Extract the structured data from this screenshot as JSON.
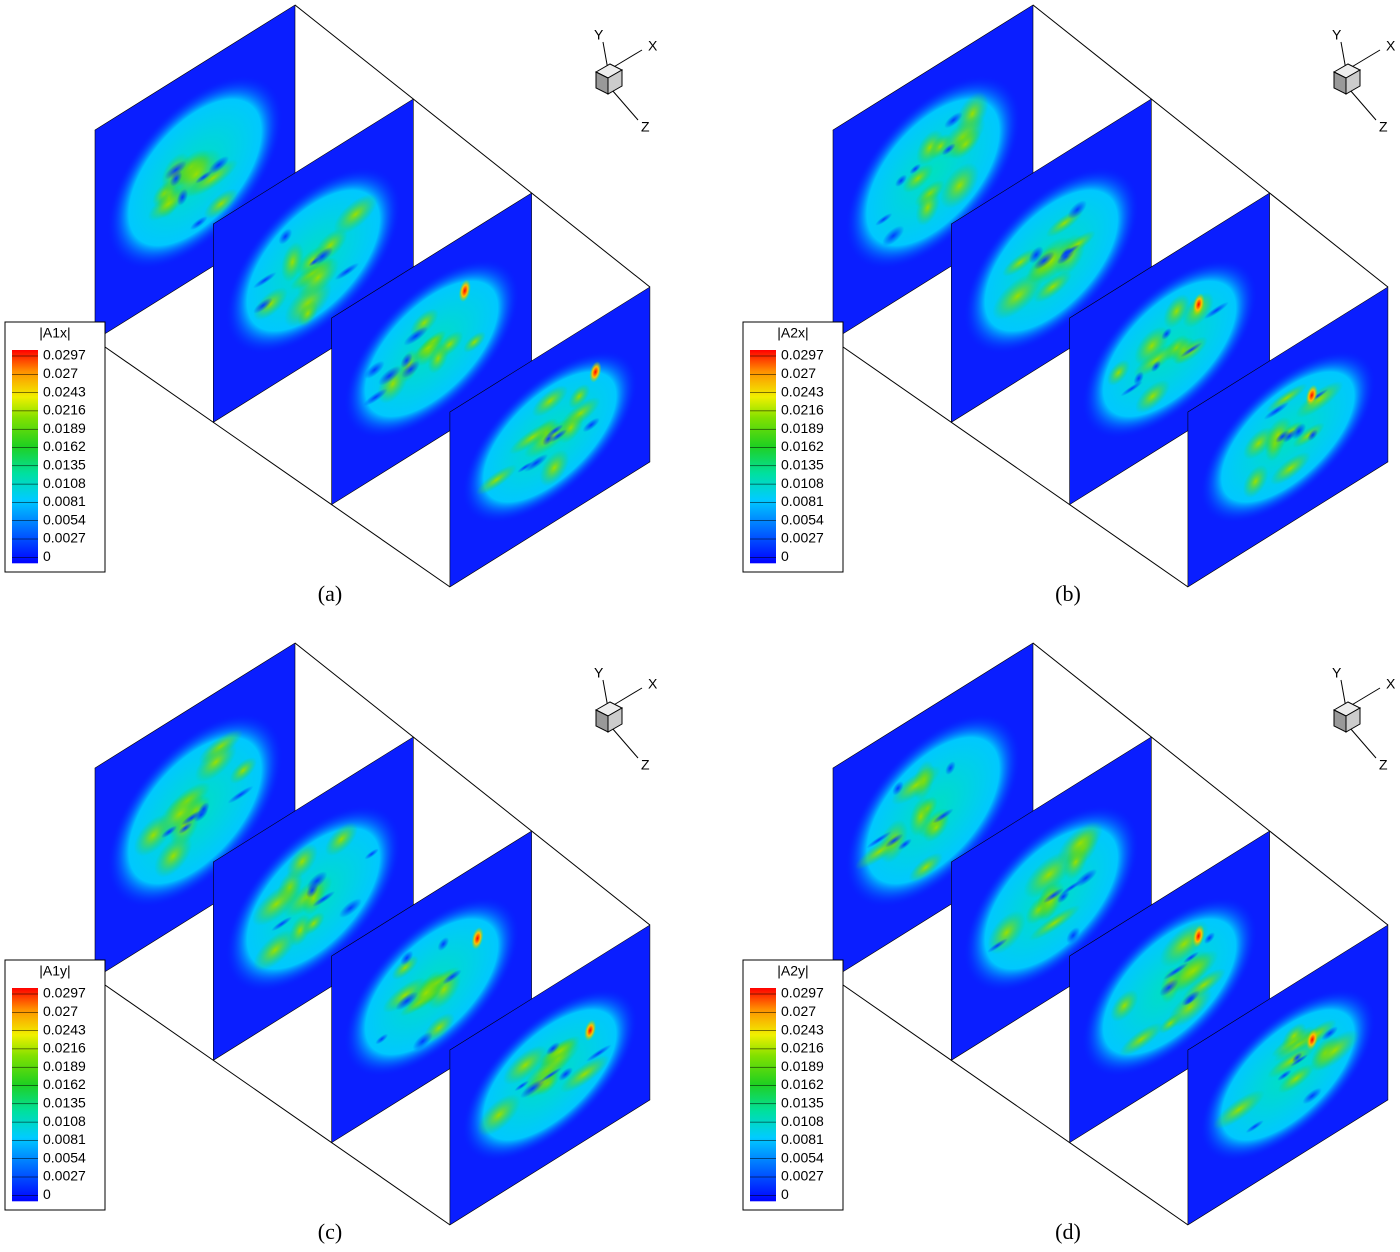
{
  "panels": [
    {
      "label": "(a)",
      "legend_title": "|A1x|"
    },
    {
      "label": "(b)",
      "legend_title": "|A2x|"
    },
    {
      "label": "(c)",
      "legend_title": "|A1y|"
    },
    {
      "label": "(d)",
      "legend_title": "|A2y|"
    }
  ],
  "colorbar_levels": [
    0.0297,
    0.027,
    0.0243,
    0.0216,
    0.0189,
    0.0162,
    0.0135,
    0.0108,
    0.0081,
    0.0054,
    0.0027,
    0
  ],
  "axes": {
    "x": "X",
    "y": "Y",
    "z": "Z"
  }
}
